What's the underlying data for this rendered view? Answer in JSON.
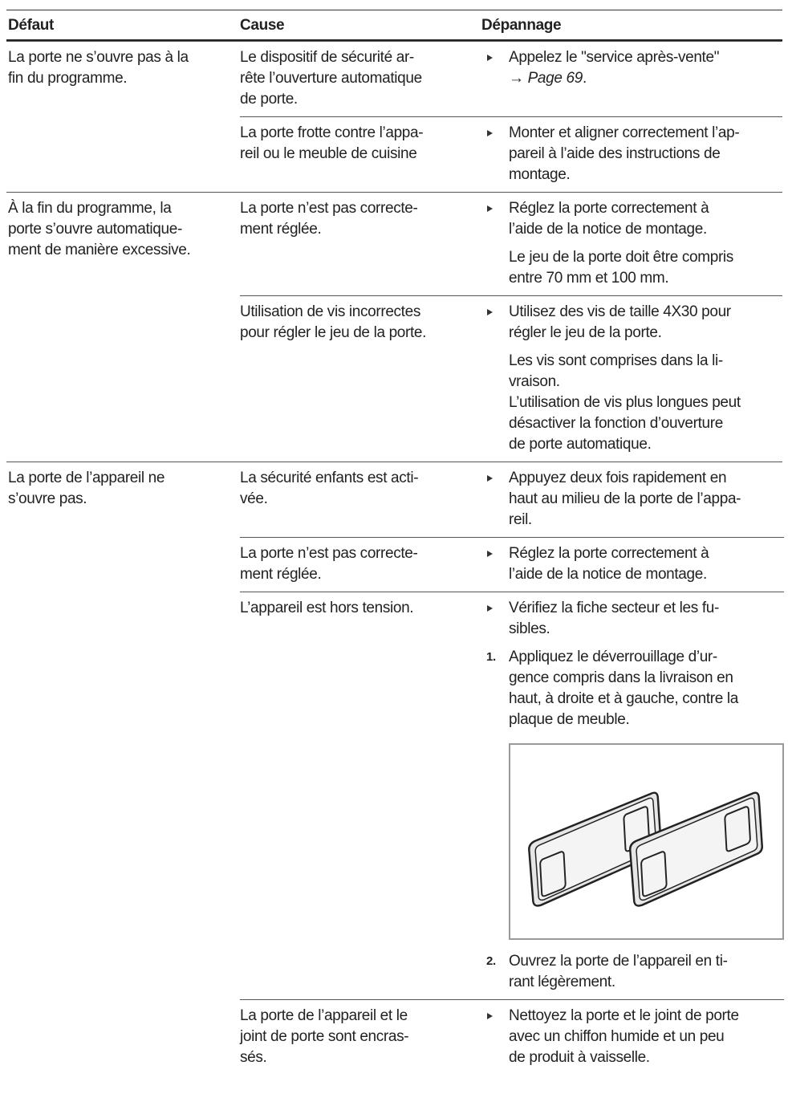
{
  "table": {
    "headers": [
      "Défaut",
      "Cause",
      "Dépannage"
    ],
    "groups": [
      {
        "fault": "La porte ne s’ouvre pas à la\nfin du programme.",
        "causes": [
          {
            "cause": "Le dispositif de sécurité ar-\nrête l’ouverture automatique\nde porte.",
            "bullet": "Appelez le \"service après-vente\"\n→ ",
            "link": "Page 69",
            "after": "."
          },
          {
            "cause": "La porte frotte contre l’appa-\nreil ou le meuble de cuisine",
            "bullet": "Monter et aligner correctement l’ap-\npareil à l’aide des instructions de\nmontage."
          }
        ]
      },
      {
        "fault": "À la fin du programme, la\nporte s’ouvre automatique-\nment de manière excessive.",
        "causes": [
          {
            "cause": "La porte n’est pas correcte-\nment réglée.",
            "bullet": "Réglez la porte correctement à\nl’aide de la notice de montage.",
            "note": "Le jeu de la porte doit être compris\nentre 70 mm et 100 mm."
          },
          {
            "cause": "Utilisation de vis incorrectes\npour régler le jeu de la porte.",
            "bullet": "Utilisez des vis de taille 4X30 pour\nrégler le jeu de la porte.",
            "note": "Les vis sont comprises dans la li-\nvraison.\nL’utilisation de vis plus longues peut\ndésactiver la fonction d’ouverture\nde porte automatique."
          }
        ]
      },
      {
        "fault": "La porte de l’appareil ne\ns’ouvre pas.",
        "causes": [
          {
            "cause": "La sécurité enfants est acti-\nvée.",
            "bullet": "Appuyez deux fois rapidement en\nhaut au milieu de la porte de l’appa-\nreil."
          },
          {
            "cause": "La porte n’est pas correcte-\nment réglée.",
            "bullet": "Réglez la porte correctement à\nl’aide de la notice de montage."
          },
          {
            "cause": "L’appareil est hors tension.",
            "bullet": "Vérifiez la fiche secteur et les fu-\nsibles.",
            "steps": [
              {
                "number": "1.",
                "text": "Appliquez le déverrouillage d’ur-\ngence compris dans la livraison en\nhaut, à droite et à gauche, contre la\nplaque de meuble."
              },
              {
                "number": "2.",
                "text": "Ouvrez la porte de l’appareil en ti-\nrant légèrement."
              }
            ]
          },
          {
            "cause": "La porte de l’appareil et le\njoint de porte sont encras-\nsés.",
            "bullet": "Nettoyez la porte et le joint de porte\navec un chiffon humide et un peu\nde produit à vaisselle."
          }
        ]
      }
    ]
  }
}
